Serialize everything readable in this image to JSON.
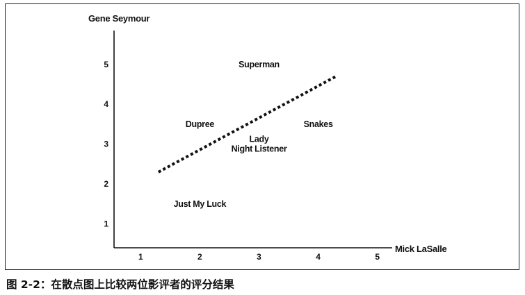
{
  "caption": "图 2-2：在散点图上比较两位影评者的评分结果",
  "chart_data": {
    "type": "scatter",
    "xlabel": "Mick LaSalle",
    "ylabel": "Gene Seymour",
    "xlim": [
      0.55,
      5.25
    ],
    "ylim": [
      0.4,
      5.85
    ],
    "x_ticks": [
      1,
      2,
      3,
      4,
      5
    ],
    "y_ticks": [
      1,
      2,
      3,
      4,
      5
    ],
    "grid": false,
    "points": [
      {
        "label": "Superman",
        "x": 3.0,
        "y": 5.0
      },
      {
        "label": "Dupree",
        "x": 2.0,
        "y": 3.5
      },
      {
        "label": "Snakes",
        "x": 4.0,
        "y": 3.5
      },
      {
        "label": "Lady Night Listener",
        "x": 3.0,
        "y": 3.0
      },
      {
        "label": "Just My Luck",
        "x": 2.0,
        "y": 1.5
      }
    ],
    "trendline": {
      "style": "dotted",
      "x": [
        1.3,
        4.3
      ],
      "y": [
        2.3,
        4.7
      ]
    }
  }
}
